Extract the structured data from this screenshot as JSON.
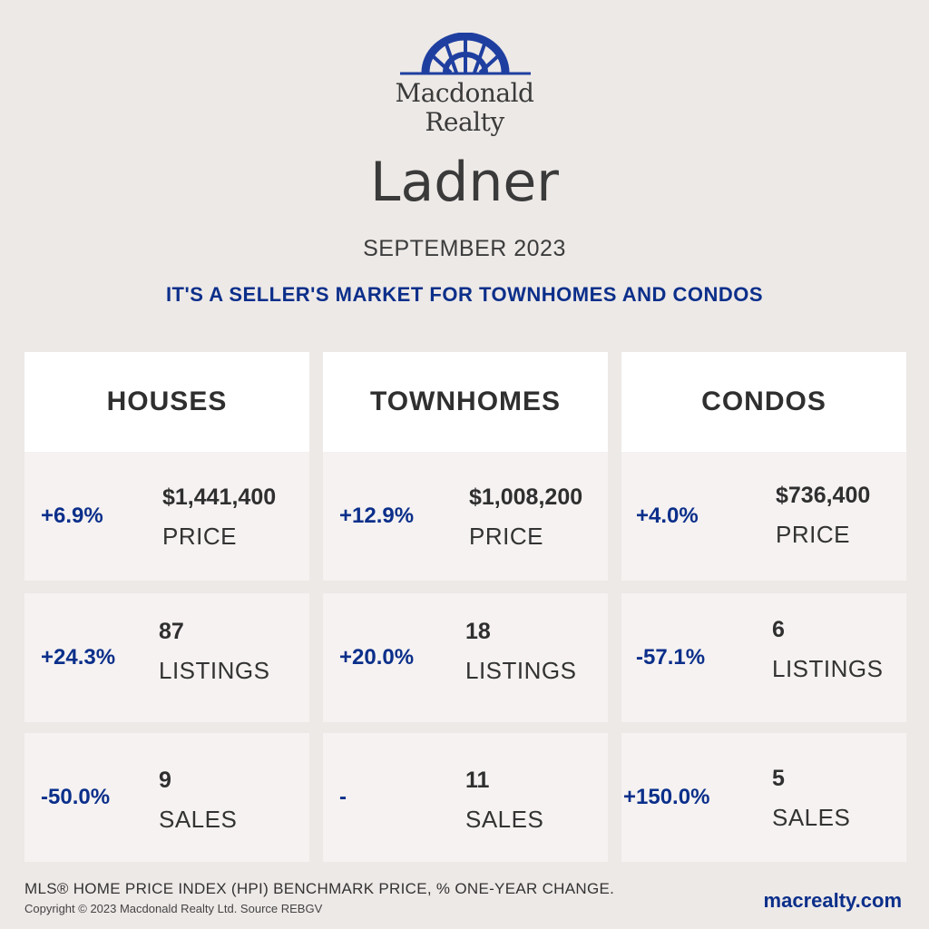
{
  "brand": {
    "line1": "Macdonald",
    "line2": "Realty",
    "color": "#1f3fa0"
  },
  "city": "Ladner",
  "month": "SEPTEMBER 2023",
  "headline": "IT'S A SELLER'S MARKET FOR TOWNHOMES AND CONDOS",
  "columns": [
    {
      "title": "HOUSES",
      "price": {
        "change": "+6.9%",
        "value": "$1,441,400",
        "label": "PRICE"
      },
      "listings": {
        "change": "+24.3%",
        "value": "87",
        "label": "LISTINGS"
      },
      "sales": {
        "change": "-50.0%",
        "value": "9",
        "label": "SALES"
      }
    },
    {
      "title": "TOWNHOMES",
      "price": {
        "change": "+12.9%",
        "value": "$1,008,200",
        "label": "PRICE"
      },
      "listings": {
        "change": "+20.0%",
        "value": "18",
        "label": "LISTINGS"
      },
      "sales": {
        "change": "-",
        "value": "11",
        "label": "SALES"
      }
    },
    {
      "title": "CONDOS",
      "price": {
        "change": "+4.0%",
        "value": "$736,400",
        "label": "PRICE"
      },
      "listings": {
        "change": "-57.1%",
        "value": "6",
        "label": "LISTINGS"
      },
      "sales": {
        "change": "+150.0%",
        "value": "5",
        "label": "SALES"
      }
    }
  ],
  "footnote": "MLS® HOME PRICE INDEX (HPI) BENCHMARK PRICE, % ONE-YEAR CHANGE.",
  "copyright": "Copyright © 2023 Macdonald Realty Ltd. Source REBGV",
  "website": "macrealty.com",
  "colors": {
    "background": "#ede9e7",
    "accent_blue": "#0b2f8a",
    "text_dark": "#2f2f2f"
  }
}
